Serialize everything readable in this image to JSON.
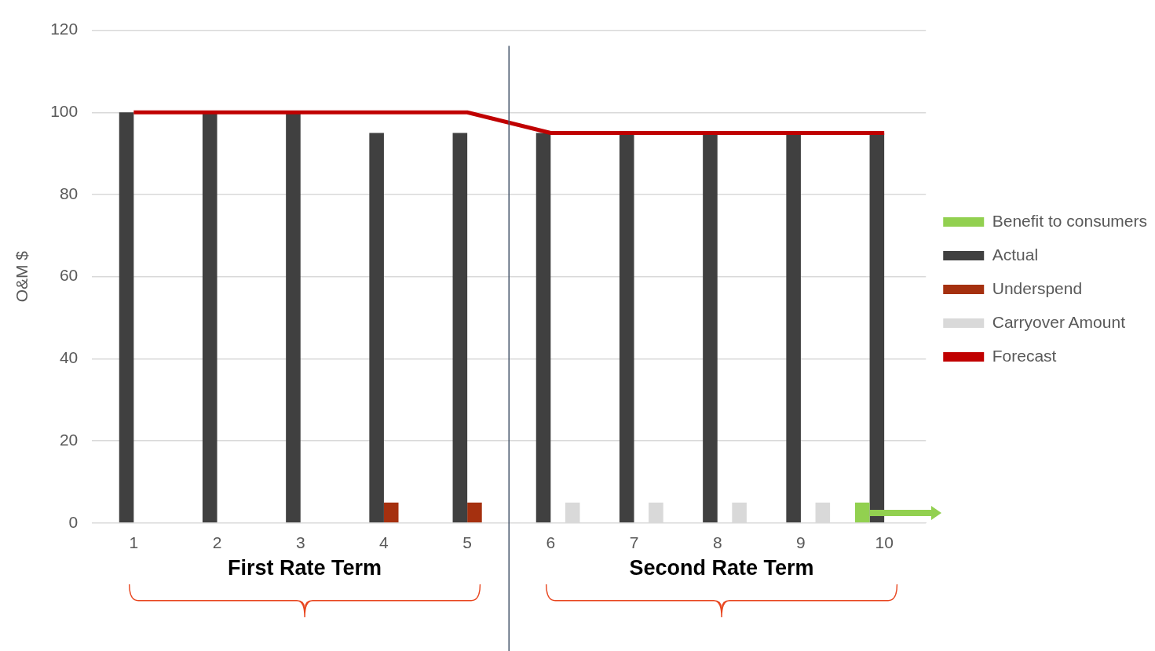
{
  "chart_data": {
    "type": "bar",
    "ylabel": "O&M $",
    "x": [
      1,
      2,
      3,
      4,
      5,
      6,
      7,
      8,
      9,
      10
    ],
    "xlim": [
      0.5,
      10.5
    ],
    "xticks": [
      1,
      2,
      3,
      4,
      5,
      6,
      7,
      8,
      9,
      10
    ],
    "series": [
      {
        "name": "Benefit to consumers",
        "color": "#92d050",
        "values": [
          null,
          null,
          null,
          null,
          null,
          null,
          null,
          null,
          null,
          5
        ]
      },
      {
        "name": "Actual",
        "color": "#404040",
        "values": [
          100,
          100,
          100,
          95,
          95,
          95,
          95,
          95,
          95,
          95
        ]
      },
      {
        "name": "Underspend",
        "color": "#a5300f",
        "values": [
          null,
          null,
          null,
          5,
          5,
          null,
          null,
          null,
          null,
          null
        ]
      },
      {
        "name": "Carryover Amount",
        "color": "#d9d9d9",
        "values": [
          null,
          null,
          null,
          null,
          null,
          5,
          5,
          5,
          5,
          null
        ]
      },
      {
        "name": "Forecast",
        "type": "line",
        "color": "#c00000",
        "values": [
          100,
          100,
          100,
          100,
          100,
          95,
          95,
          95,
          95,
          95
        ]
      }
    ],
    "ref_lines": [
      {
        "axis": "x",
        "value": 5.5,
        "color": "#44546a"
      }
    ],
    "ylim": [
      0,
      120
    ],
    "yticks": [
      0,
      20,
      40,
      60,
      80,
      100,
      120
    ],
    "grid": "y",
    "legend": "right",
    "marker": "none",
    "annotations": [
      "First Rate Term",
      "Second Rate Term"
    ]
  }
}
